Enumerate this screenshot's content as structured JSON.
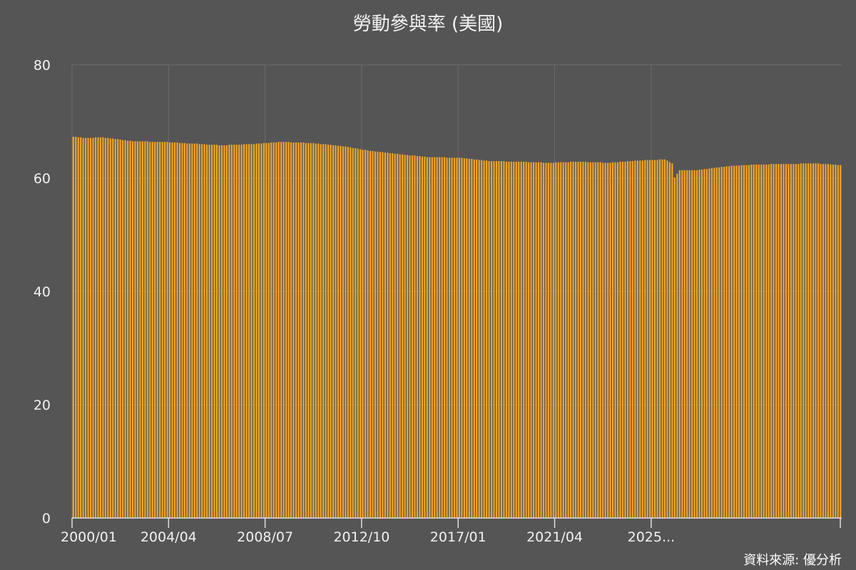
{
  "chart_data": {
    "type": "bar",
    "title": "勞動參與率 (美國)",
    "xlabel": "",
    "ylabel": "",
    "ylim": [
      0,
      80
    ],
    "yticks": [
      0,
      20,
      40,
      60,
      80
    ],
    "x_tick_labels": [
      "2000/01",
      "2004/04",
      "2008/07",
      "2012/10",
      "2017/01",
      "2021/04",
      "2025..."
    ],
    "grid": true,
    "legend": "none",
    "source": "資料來源: 優分析",
    "period": {
      "start": "2000/01",
      "end": "2025/11"
    },
    "anchor_values": [
      {
        "date": "2000/01",
        "value": 67.3
      },
      {
        "date": "2000/06",
        "value": 67.1
      },
      {
        "date": "2001/01",
        "value": 67.2
      },
      {
        "date": "2002/01",
        "value": 66.5
      },
      {
        "date": "2003/01",
        "value": 66.4
      },
      {
        "date": "2004/01",
        "value": 66.1
      },
      {
        "date": "2005/01",
        "value": 65.8
      },
      {
        "date": "2006/01",
        "value": 66.0
      },
      {
        "date": "2007/01",
        "value": 66.4
      },
      {
        "date": "2008/01",
        "value": 66.2
      },
      {
        "date": "2009/01",
        "value": 65.7
      },
      {
        "date": "2010/01",
        "value": 64.8
      },
      {
        "date": "2011/01",
        "value": 64.2
      },
      {
        "date": "2012/01",
        "value": 63.7
      },
      {
        "date": "2013/01",
        "value": 63.6
      },
      {
        "date": "2014/01",
        "value": 63.0
      },
      {
        "date": "2015/01",
        "value": 62.9
      },
      {
        "date": "2016/01",
        "value": 62.7
      },
      {
        "date": "2017/01",
        "value": 62.9
      },
      {
        "date": "2018/01",
        "value": 62.7
      },
      {
        "date": "2019/01",
        "value": 63.1
      },
      {
        "date": "2019/12",
        "value": 63.3
      },
      {
        "date": "2020/03",
        "value": 62.6
      },
      {
        "date": "2020/04",
        "value": 60.1
      },
      {
        "date": "2020/06",
        "value": 61.4
      },
      {
        "date": "2021/01",
        "value": 61.4
      },
      {
        "date": "2022/01",
        "value": 62.1
      },
      {
        "date": "2023/01",
        "value": 62.4
      },
      {
        "date": "2024/01",
        "value": 62.5
      },
      {
        "date": "2025/01",
        "value": 62.6
      },
      {
        "date": "2025/11",
        "value": 62.3
      }
    ],
    "colors": {
      "background": "#555555",
      "bar": "#f5a623",
      "grid": "#6b6b6b",
      "axis": "#e0e0e0",
      "text": "#f2f2f2"
    }
  }
}
